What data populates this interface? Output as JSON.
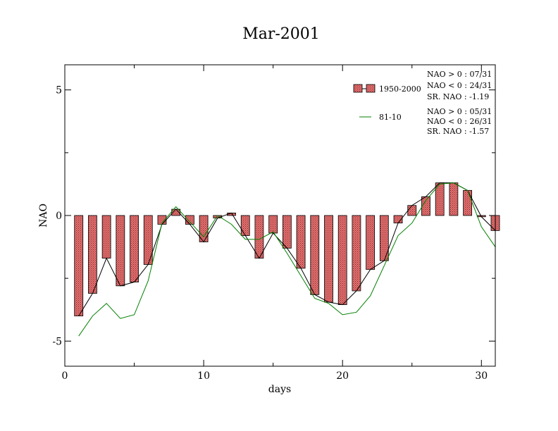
{
  "chart_data": {
    "type": "bar",
    "title": "Mar-2001",
    "xlabel": "days",
    "ylabel": "NAO",
    "xlim": [
      0,
      31
    ],
    "ylim": [
      -6,
      6
    ],
    "xticks": [
      0,
      10,
      20,
      30
    ],
    "yticks": [
      -5,
      0,
      5
    ],
    "series": [
      {
        "name": "1950-2000",
        "kind": "bar+line",
        "x": [
          1,
          2,
          3,
          4,
          5,
          6,
          7,
          8,
          9,
          10,
          11,
          12,
          13,
          14,
          15,
          16,
          17,
          18,
          19,
          20,
          21,
          22,
          23,
          24,
          25,
          26,
          27,
          28,
          29,
          30,
          31
        ],
        "values": [
          -4.0,
          -3.1,
          -1.7,
          -2.8,
          -2.65,
          -1.95,
          -0.35,
          0.25,
          -0.35,
          -1.05,
          -0.1,
          0.1,
          -0.8,
          -1.7,
          -0.7,
          -1.3,
          -2.1,
          -3.15,
          -3.45,
          -3.55,
          -3.0,
          -2.15,
          -1.8,
          -0.3,
          0.4,
          0.75,
          1.3,
          1.3,
          1.0,
          -0.05,
          -0.6
        ],
        "stats": [
          "NAO > 0 : 07/31",
          "NAO < 0 : 24/31",
          "SR. NAO : -1.19"
        ]
      },
      {
        "name": "81-10",
        "kind": "line",
        "color": "#008000",
        "x": [
          1,
          2,
          3,
          4,
          5,
          6,
          7,
          8,
          9,
          10,
          11,
          12,
          13,
          14,
          15,
          16,
          17,
          18,
          19,
          20,
          21,
          22,
          23,
          24,
          25,
          26,
          27,
          28,
          29,
          30,
          31
        ],
        "values": [
          -4.8,
          -4.0,
          -3.5,
          -4.1,
          -3.95,
          -2.6,
          -0.3,
          0.35,
          -0.25,
          -0.85,
          0.0,
          -0.35,
          -0.95,
          -0.95,
          -0.65,
          -1.5,
          -2.4,
          -3.3,
          -3.5,
          -3.95,
          -3.85,
          -3.2,
          -2.0,
          -0.8,
          -0.3,
          0.6,
          1.25,
          1.3,
          1.0,
          -0.45,
          -1.25
        ],
        "stats": [
          "NAO > 0 : 05/31",
          "NAO < 0 : 26/31",
          "SR. NAO : -1.57"
        ]
      }
    ],
    "legend_position": "top-right",
    "grid": false
  }
}
